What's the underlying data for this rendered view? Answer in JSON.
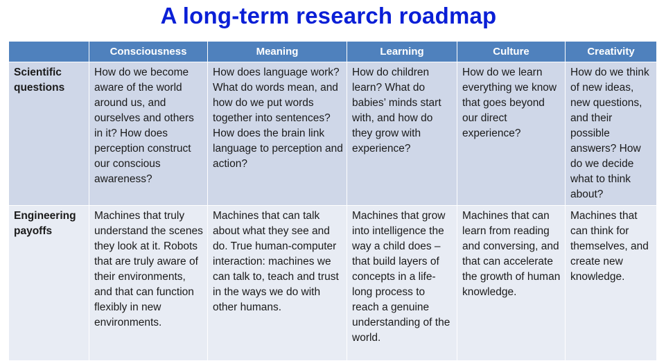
{
  "title": "A long-term research roadmap",
  "table": {
    "columns": [
      "Consciousness",
      "Meaning",
      "Learning",
      "Culture",
      "Creativity"
    ],
    "rows": [
      {
        "header": "Scientific questions",
        "cells": [
          "How do we become aware of the world around us, and ourselves and others in it? How does perception construct our conscious awareness?",
          "How does language work? What do words mean, and how do we put words together into sentences? How does the brain link language to perception and action?",
          "How do children learn? What do babies’ minds start with, and how do they grow with experience?",
          "How do we learn everything we know that goes beyond our direct experience?",
          "How do we think of new ideas, new questions, and their possible answers? How do we decide what to think about?"
        ]
      },
      {
        "header": "Engineering payoffs",
        "cells": [
          "Machines that truly understand the scenes they look at it. Robots that are truly aware of their environments, and that can function flexibly in new environments.",
          "Machines that can talk about what they see and do. True human-computer interaction: machines we can talk to, teach and trust in the ways we do with other humans.",
          "Machines that grow into intelligence the way a child does – that build layers of concepts in a life-long process to reach a genuine understanding of the world.",
          "Machines that can learn from reading and conversing, and that can accelerate the growth of human knowledge.",
          "Machines that can think for themselves, and create new knowledge."
        ]
      }
    ]
  }
}
